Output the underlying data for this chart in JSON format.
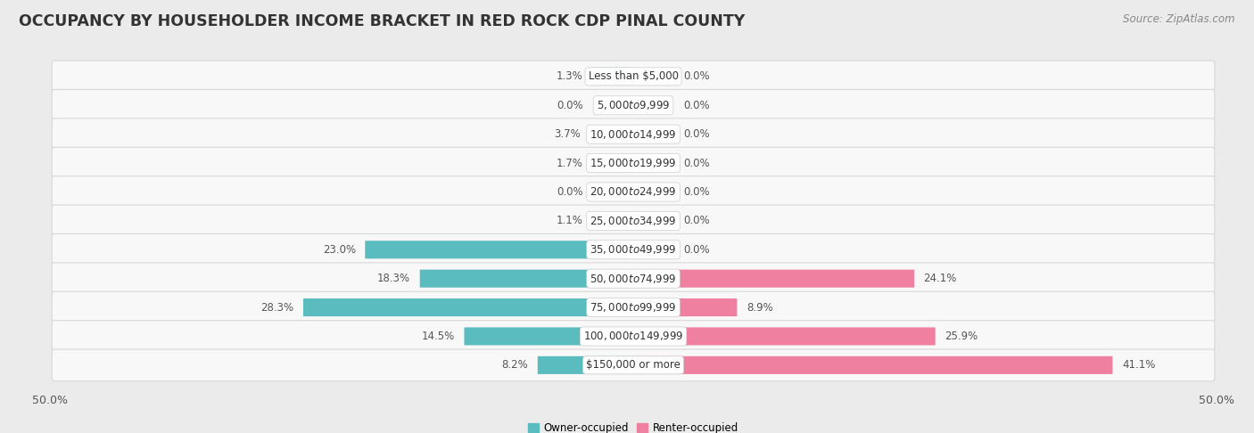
{
  "title": "OCCUPANCY BY HOUSEHOLDER INCOME BRACKET IN RED ROCK CDP PINAL COUNTY",
  "source": "Source: ZipAtlas.com",
  "categories": [
    "Less than $5,000",
    "$5,000 to $9,999",
    "$10,000 to $14,999",
    "$15,000 to $19,999",
    "$20,000 to $24,999",
    "$25,000 to $34,999",
    "$35,000 to $49,999",
    "$50,000 to $74,999",
    "$75,000 to $99,999",
    "$100,000 to $149,999",
    "$150,000 or more"
  ],
  "owner_values": [
    1.3,
    0.0,
    3.7,
    1.7,
    0.0,
    1.1,
    23.0,
    18.3,
    28.3,
    14.5,
    8.2
  ],
  "renter_values": [
    0.0,
    0.0,
    0.0,
    0.0,
    0.0,
    0.0,
    0.0,
    24.1,
    8.9,
    25.9,
    41.1
  ],
  "owner_color": "#5bbcbf",
  "renter_color": "#f080a0",
  "label_color": "#555555",
  "bg_color": "#ebebeb",
  "row_bg_color": "#f8f8f8",
  "row_border_color": "#d8d8d8",
  "white_label_bg": "#ffffff",
  "xlim": 50.0,
  "bar_height": 0.62,
  "title_fontsize": 12.5,
  "label_fontsize": 8.5,
  "cat_fontsize": 8.5,
  "tick_fontsize": 9,
  "source_fontsize": 8.5,
  "min_bar_width": 3.5
}
